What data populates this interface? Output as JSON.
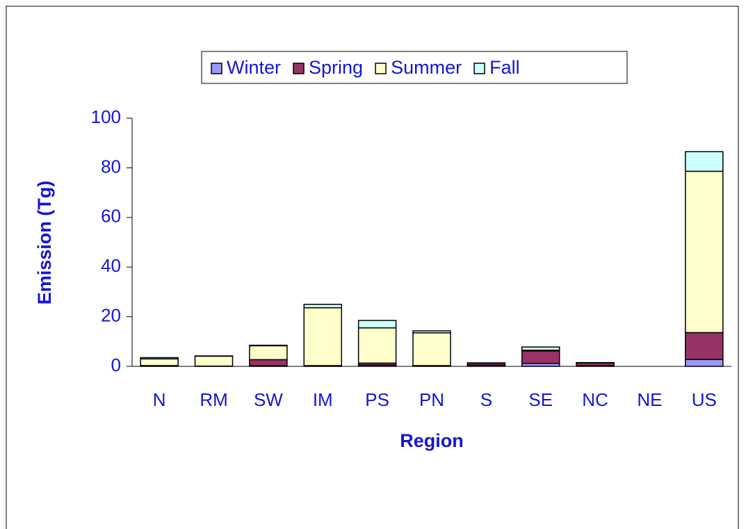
{
  "chart_data": {
    "type": "stacked_bar",
    "x_label": "Region",
    "y_label": "Emission (Tg)",
    "categories": [
      "N",
      "RM",
      "SW",
      "IM",
      "PS",
      "PN",
      "S",
      "SE",
      "NC",
      "NE",
      "US"
    ],
    "series": [
      {
        "name": "Winter",
        "color": "#9999ff",
        "values": [
          0.1,
          0,
          0.2,
          0.1,
          0.5,
          0.1,
          0.5,
          1.2,
          0.3,
          0,
          2.8
        ]
      },
      {
        "name": "Spring",
        "color": "#993366",
        "values": [
          0.2,
          0.1,
          2.5,
          0.2,
          0.8,
          0.2,
          0.8,
          5,
          1.1,
          0,
          10.8
        ]
      },
      {
        "name": "Summer",
        "color": "#ffffcc",
        "values": [
          2.7,
          4,
          5.6,
          23.3,
          14.2,
          13.2,
          0.1,
          0.3,
          0.05,
          0,
          65
        ]
      },
      {
        "name": "Fall",
        "color": "#ccffff",
        "values": [
          0.5,
          0.1,
          0.2,
          1.4,
          3,
          0.8,
          0,
          1.3,
          0.05,
          0,
          7.9
        ]
      }
    ],
    "ylim": [
      0,
      100
    ],
    "yticks": [
      0,
      20,
      40,
      60,
      80,
      100
    ],
    "legend": "top"
  }
}
